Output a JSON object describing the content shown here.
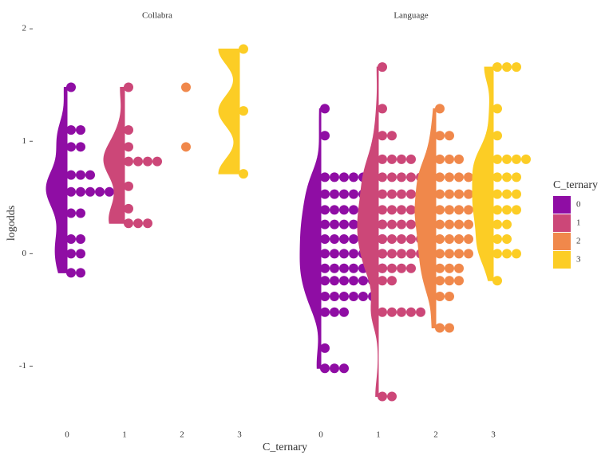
{
  "chart_data": [
    {
      "type": "raincloud",
      "title": "Collabra",
      "categories": [
        "0",
        "1",
        "2",
        "3"
      ],
      "series": [
        {
          "name": "0",
          "color": "#8f0da4",
          "dots": [
            {
              "y": 1.48,
              "n": 1
            },
            {
              "y": 1.1,
              "n": 2
            },
            {
              "y": 0.95,
              "n": 2
            },
            {
              "y": 0.7,
              "n": 3
            },
            {
              "y": 0.55,
              "n": 5
            },
            {
              "y": 0.36,
              "n": 2
            },
            {
              "y": 0.13,
              "n": 2
            },
            {
              "y": 0,
              "n": 2
            },
            {
              "y": -0.17,
              "n": 2
            }
          ]
        },
        {
          "name": "1",
          "color": "#cc4778",
          "dots": [
            {
              "y": 1.48,
              "n": 1
            },
            {
              "y": 1.1,
              "n": 1
            },
            {
              "y": 0.95,
              "n": 1
            },
            {
              "y": 0.82,
              "n": 4
            },
            {
              "y": 0.6,
              "n": 1
            },
            {
              "y": 0.4,
              "n": 1
            },
            {
              "y": 0.27,
              "n": 3
            }
          ]
        },
        {
          "name": "2",
          "color": "#f0884b",
          "dots": [
            {
              "y": 1.48,
              "n": 1
            },
            {
              "y": 0.95,
              "n": 1
            }
          ]
        },
        {
          "name": "3",
          "color": "#fccd25",
          "dots": [
            {
              "y": 1.82,
              "n": 1
            },
            {
              "y": 1.27,
              "n": 1
            },
            {
              "y": 0.71,
              "n": 1
            }
          ]
        }
      ]
    },
    {
      "type": "raincloud",
      "title": "Language",
      "categories": [
        "0",
        "1",
        "2",
        "3"
      ],
      "series": [
        {
          "name": "0",
          "color": "#8f0da4",
          "dots": [
            {
              "y": 1.29,
              "n": 1
            },
            {
              "y": 1.05,
              "n": 1
            },
            {
              "y": 0.68,
              "n": 5
            },
            {
              "y": 0.53,
              "n": 6
            },
            {
              "y": 0.39,
              "n": 6
            },
            {
              "y": 0.26,
              "n": 7
            },
            {
              "y": 0.13,
              "n": 7
            },
            {
              "y": 0,
              "n": 7
            },
            {
              "y": -0.13,
              "n": 7
            },
            {
              "y": -0.24,
              "n": 6
            },
            {
              "y": -0.38,
              "n": 6
            },
            {
              "y": -0.52,
              "n": 3
            },
            {
              "y": -0.84,
              "n": 1
            },
            {
              "y": -1.02,
              "n": 3
            }
          ]
        },
        {
          "name": "1",
          "color": "#cc4778",
          "dots": [
            {
              "y": 1.66,
              "n": 1
            },
            {
              "y": 1.29,
              "n": 1
            },
            {
              "y": 1.05,
              "n": 2
            },
            {
              "y": 0.84,
              "n": 4
            },
            {
              "y": 0.68,
              "n": 6
            },
            {
              "y": 0.53,
              "n": 5
            },
            {
              "y": 0.39,
              "n": 6
            },
            {
              "y": 0.26,
              "n": 6
            },
            {
              "y": 0.13,
              "n": 6
            },
            {
              "y": 0,
              "n": 5
            },
            {
              "y": -0.13,
              "n": 4
            },
            {
              "y": -0.24,
              "n": 2
            },
            {
              "y": -0.52,
              "n": 5
            },
            {
              "y": -1.27,
              "n": 2
            }
          ]
        },
        {
          "name": "2",
          "color": "#f0884b",
          "dots": [
            {
              "y": 1.29,
              "n": 1
            },
            {
              "y": 1.05,
              "n": 2
            },
            {
              "y": 0.84,
              "n": 3
            },
            {
              "y": 0.68,
              "n": 6
            },
            {
              "y": 0.53,
              "n": 4
            },
            {
              "y": 0.39,
              "n": 6
            },
            {
              "y": 0.26,
              "n": 4
            },
            {
              "y": 0.13,
              "n": 4
            },
            {
              "y": 0,
              "n": 4
            },
            {
              "y": -0.13,
              "n": 3
            },
            {
              "y": -0.24,
              "n": 3
            },
            {
              "y": -0.38,
              "n": 2
            },
            {
              "y": -0.66,
              "n": 2
            }
          ]
        },
        {
          "name": "3",
          "color": "#fccd25",
          "dots": [
            {
              "y": 1.66,
              "n": 3
            },
            {
              "y": 1.29,
              "n": 1
            },
            {
              "y": 1.05,
              "n": 1
            },
            {
              "y": 0.84,
              "n": 4
            },
            {
              "y": 0.68,
              "n": 3
            },
            {
              "y": 0.53,
              "n": 3
            },
            {
              "y": 0.39,
              "n": 3
            },
            {
              "y": 0.26,
              "n": 2
            },
            {
              "y": 0.13,
              "n": 2
            },
            {
              "y": 0,
              "n": 3
            },
            {
              "y": -0.24,
              "n": 1
            }
          ]
        }
      ]
    }
  ],
  "x_label": "C_ternary",
  "y_axis": {
    "label": "logodds",
    "ylim": [
      -1.5,
      2.15
    ],
    "yticks": [
      -1,
      0,
      1,
      2
    ]
  },
  "legend": {
    "title": "C_ternary",
    "position": "right"
  }
}
